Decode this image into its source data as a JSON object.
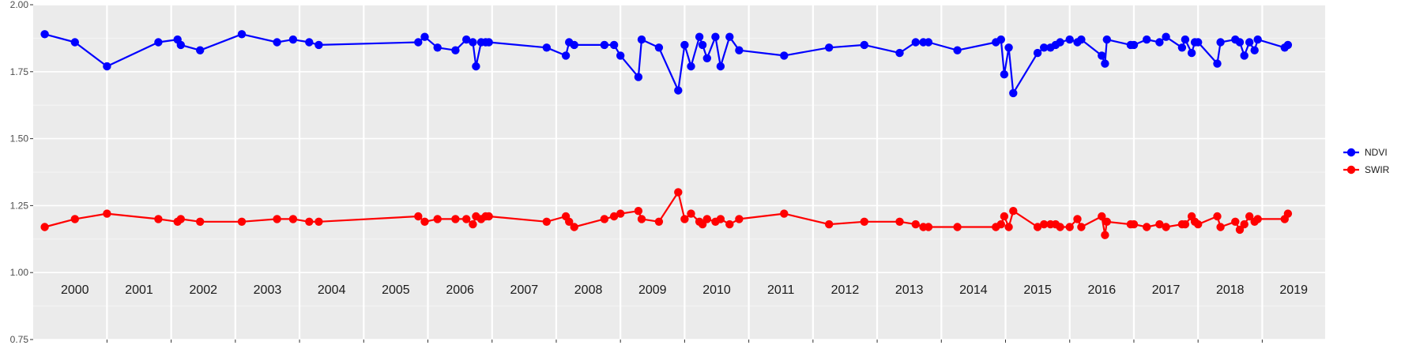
{
  "chart_data": {
    "type": "line",
    "title": "",
    "xlabel": "",
    "ylabel": "",
    "ylim": [
      0.75,
      2.0
    ],
    "yticks": [
      "0.75",
      "1.00",
      "1.25",
      "1.50",
      "1.75",
      "2.00"
    ],
    "xlim": [
      1999.85,
      2019.98
    ],
    "year_labels": [
      "2000",
      "2001",
      "2002",
      "2003",
      "2004",
      "2005",
      "2006",
      "2007",
      "2008",
      "2009",
      "2010",
      "2011",
      "2012",
      "2013",
      "2014",
      "2015",
      "2016",
      "2017",
      "2018",
      "2019"
    ],
    "grid": true,
    "legend_position": "right",
    "colors": {
      "panel": "#ebebeb",
      "grid_major": "#ffffff",
      "grid_minor": "#f5f5f5",
      "axis_text": "#4d4d4d",
      "ndvi": "#0000ff",
      "swir": "#ff0000"
    },
    "series": [
      {
        "name": "NDVI",
        "color": "#0000ff",
        "points": [
          [
            2000.03,
            1.89
          ],
          [
            2000.5,
            1.86
          ],
          [
            2001.0,
            1.77
          ],
          [
            2001.8,
            1.86
          ],
          [
            2002.1,
            1.87
          ],
          [
            2002.15,
            1.85
          ],
          [
            2002.45,
            1.83
          ],
          [
            2003.1,
            1.89
          ],
          [
            2003.65,
            1.86
          ],
          [
            2003.9,
            1.87
          ],
          [
            2004.15,
            1.86
          ],
          [
            2004.3,
            1.85
          ],
          [
            2005.85,
            1.86
          ],
          [
            2005.95,
            1.88
          ],
          [
            2006.15,
            1.84
          ],
          [
            2006.43,
            1.83
          ],
          [
            2006.6,
            1.87
          ],
          [
            2006.7,
            1.86
          ],
          [
            2006.75,
            1.77
          ],
          [
            2006.83,
            1.86
          ],
          [
            2006.9,
            1.86
          ],
          [
            2006.95,
            1.86
          ],
          [
            2007.85,
            1.84
          ],
          [
            2008.15,
            1.81
          ],
          [
            2008.2,
            1.86
          ],
          [
            2008.28,
            1.85
          ],
          [
            2008.75,
            1.85
          ],
          [
            2008.9,
            1.85
          ],
          [
            2009.0,
            1.81
          ],
          [
            2009.28,
            1.73
          ],
          [
            2009.33,
            1.87
          ],
          [
            2009.6,
            1.84
          ],
          [
            2009.9,
            1.68
          ],
          [
            2010.0,
            1.85
          ],
          [
            2010.1,
            1.77
          ],
          [
            2010.23,
            1.88
          ],
          [
            2010.28,
            1.85
          ],
          [
            2010.35,
            1.8
          ],
          [
            2010.48,
            1.88
          ],
          [
            2010.56,
            1.77
          ],
          [
            2010.7,
            1.88
          ],
          [
            2010.85,
            1.83
          ],
          [
            2011.55,
            1.81
          ],
          [
            2012.25,
            1.84
          ],
          [
            2012.8,
            1.85
          ],
          [
            2013.35,
            1.82
          ],
          [
            2013.6,
            1.86
          ],
          [
            2013.72,
            1.86
          ],
          [
            2013.8,
            1.86
          ],
          [
            2014.25,
            1.83
          ],
          [
            2014.85,
            1.86
          ],
          [
            2014.93,
            1.87
          ],
          [
            2014.98,
            1.74
          ],
          [
            2015.05,
            1.84
          ],
          [
            2015.12,
            1.67
          ],
          [
            2015.5,
            1.82
          ],
          [
            2015.6,
            1.84
          ],
          [
            2015.7,
            1.84
          ],
          [
            2015.78,
            1.85
          ],
          [
            2015.85,
            1.86
          ],
          [
            2016.0,
            1.87
          ],
          [
            2016.12,
            1.86
          ],
          [
            2016.18,
            1.87
          ],
          [
            2016.5,
            1.81
          ],
          [
            2016.55,
            1.78
          ],
          [
            2016.58,
            1.87
          ],
          [
            2016.95,
            1.85
          ],
          [
            2017.0,
            1.85
          ],
          [
            2017.2,
            1.87
          ],
          [
            2017.4,
            1.86
          ],
          [
            2017.5,
            1.88
          ],
          [
            2017.75,
            1.84
          ],
          [
            2017.8,
            1.87
          ],
          [
            2017.9,
            1.82
          ],
          [
            2017.95,
            1.86
          ],
          [
            2018.0,
            1.86
          ],
          [
            2018.3,
            1.78
          ],
          [
            2018.35,
            1.86
          ],
          [
            2018.58,
            1.87
          ],
          [
            2018.65,
            1.86
          ],
          [
            2018.72,
            1.81
          ],
          [
            2018.8,
            1.86
          ],
          [
            2018.88,
            1.83
          ],
          [
            2018.93,
            1.87
          ],
          [
            2019.35,
            1.84
          ],
          [
            2019.4,
            1.85
          ]
        ]
      },
      {
        "name": "SWIR",
        "color": "#ff0000",
        "points": [
          [
            2000.03,
            1.17
          ],
          [
            2000.5,
            1.2
          ],
          [
            2001.0,
            1.22
          ],
          [
            2001.8,
            1.2
          ],
          [
            2002.1,
            1.19
          ],
          [
            2002.15,
            1.2
          ],
          [
            2002.45,
            1.19
          ],
          [
            2003.1,
            1.19
          ],
          [
            2003.65,
            1.2
          ],
          [
            2003.9,
            1.2
          ],
          [
            2004.15,
            1.19
          ],
          [
            2004.3,
            1.19
          ],
          [
            2005.85,
            1.21
          ],
          [
            2005.95,
            1.19
          ],
          [
            2006.15,
            1.2
          ],
          [
            2006.43,
            1.2
          ],
          [
            2006.6,
            1.2
          ],
          [
            2006.7,
            1.18
          ],
          [
            2006.75,
            1.21
          ],
          [
            2006.83,
            1.2
          ],
          [
            2006.9,
            1.21
          ],
          [
            2006.95,
            1.21
          ],
          [
            2007.85,
            1.19
          ],
          [
            2008.15,
            1.21
          ],
          [
            2008.2,
            1.19
          ],
          [
            2008.28,
            1.17
          ],
          [
            2008.75,
            1.2
          ],
          [
            2008.9,
            1.21
          ],
          [
            2009.0,
            1.22
          ],
          [
            2009.28,
            1.23
          ],
          [
            2009.33,
            1.2
          ],
          [
            2009.6,
            1.19
          ],
          [
            2009.9,
            1.3
          ],
          [
            2010.0,
            1.2
          ],
          [
            2010.1,
            1.22
          ],
          [
            2010.23,
            1.19
          ],
          [
            2010.28,
            1.18
          ],
          [
            2010.35,
            1.2
          ],
          [
            2010.48,
            1.19
          ],
          [
            2010.56,
            1.2
          ],
          [
            2010.7,
            1.18
          ],
          [
            2010.85,
            1.2
          ],
          [
            2011.55,
            1.22
          ],
          [
            2012.25,
            1.18
          ],
          [
            2012.8,
            1.19
          ],
          [
            2013.35,
            1.19
          ],
          [
            2013.6,
            1.18
          ],
          [
            2013.72,
            1.17
          ],
          [
            2013.8,
            1.17
          ],
          [
            2014.25,
            1.17
          ],
          [
            2014.85,
            1.17
          ],
          [
            2014.93,
            1.18
          ],
          [
            2014.98,
            1.21
          ],
          [
            2015.05,
            1.17
          ],
          [
            2015.12,
            1.23
          ],
          [
            2015.5,
            1.17
          ],
          [
            2015.6,
            1.18
          ],
          [
            2015.7,
            1.18
          ],
          [
            2015.78,
            1.18
          ],
          [
            2015.85,
            1.17
          ],
          [
            2016.0,
            1.17
          ],
          [
            2016.12,
            1.2
          ],
          [
            2016.18,
            1.17
          ],
          [
            2016.5,
            1.21
          ],
          [
            2016.55,
            1.14
          ],
          [
            2016.58,
            1.19
          ],
          [
            2016.95,
            1.18
          ],
          [
            2017.0,
            1.18
          ],
          [
            2017.2,
            1.17
          ],
          [
            2017.4,
            1.18
          ],
          [
            2017.5,
            1.17
          ],
          [
            2017.75,
            1.18
          ],
          [
            2017.8,
            1.18
          ],
          [
            2017.9,
            1.21
          ],
          [
            2017.95,
            1.19
          ],
          [
            2018.0,
            1.18
          ],
          [
            2018.3,
            1.21
          ],
          [
            2018.35,
            1.17
          ],
          [
            2018.58,
            1.19
          ],
          [
            2018.65,
            1.16
          ],
          [
            2018.72,
            1.18
          ],
          [
            2018.8,
            1.21
          ],
          [
            2018.88,
            1.19
          ],
          [
            2018.93,
            1.2
          ],
          [
            2019.35,
            1.2
          ],
          [
            2019.4,
            1.22
          ]
        ]
      }
    ]
  }
}
